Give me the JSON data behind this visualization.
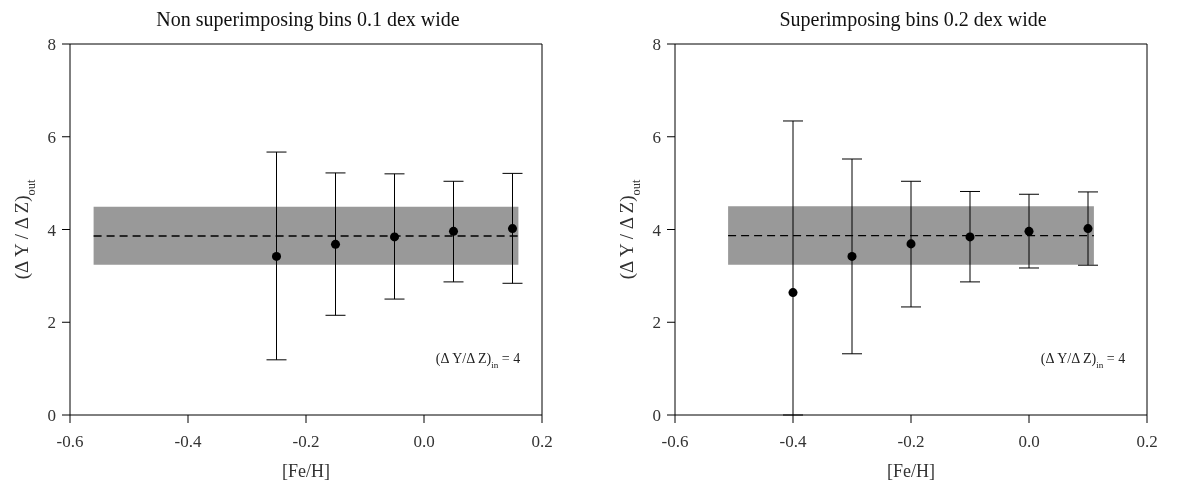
{
  "chart_data": [
    {
      "type": "scatter",
      "title": "Non superimposing bins 0.1 dex wide",
      "xlabel": "[Fe/H]",
      "ylabel": "(Δ Y / Δ Z)$_{out}$",
      "annotations": [
        "(Δ Y/Δ Z)$_{in}$ = 4"
      ],
      "xlim": [
        -0.6,
        0.2
      ],
      "xticks": [
        {
          "value": -0.6,
          "label": "-0.6"
        },
        {
          "value": -0.4,
          "label": "-0.4"
        },
        {
          "value": -0.2,
          "label": "-0.2"
        },
        {
          "value": 0,
          "label": "0.0"
        },
        {
          "value": 0.2,
          "label": "0.2"
        }
      ],
      "ylim": [
        0,
        8
      ],
      "yticks": [
        0,
        2,
        4,
        6,
        8
      ],
      "series": [
        {
          "type": "line",
          "color": "#000000",
          "line_style": "dashed",
          "marker": "none",
          "x": [
            -0.56,
            0.16
          ],
          "values": [
            3.86,
            3.86
          ],
          "lower": [
            3.24,
            3.24
          ],
          "upper": [
            4.49,
            4.49
          ]
        },
        {
          "color": "#000000",
          "marker": "circle",
          "x": [
            -0.25,
            -0.15,
            -0.05,
            0.05,
            0.15
          ],
          "values": [
            3.42,
            3.68,
            3.84,
            3.96,
            4.02
          ],
          "errors": [
            [
              1.19,
              5.67
            ],
            [
              2.15,
              5.22
            ],
            [
              2.5,
              5.2
            ],
            [
              2.87,
              5.04
            ],
            [
              2.84,
              5.21
            ]
          ]
        }
      ]
    },
    {
      "type": "scatter",
      "title": "Superimposing bins 0.2 dex wide",
      "xlabel": "[Fe/H]",
      "ylabel": "(Δ Y / Δ Z)$_{out}$",
      "annotations": [
        "(Δ Y/Δ Z)$_{in}$ = 4"
      ],
      "xlim": [
        -0.6,
        0.2
      ],
      "xticks": [
        {
          "value": -0.6,
          "label": "-0.6"
        },
        {
          "value": -0.4,
          "label": "-0.4"
        },
        {
          "value": -0.2,
          "label": "-0.2"
        },
        {
          "value": 0,
          "label": "0.0"
        },
        {
          "value": 0.2,
          "label": "0.2"
        }
      ],
      "ylim": [
        0,
        8
      ],
      "yticks": [
        0,
        2,
        4,
        6,
        8
      ],
      "series": [
        {
          "type": "line",
          "color": "#000000",
          "line_style": "dashed",
          "marker": "none",
          "x": [
            -0.51,
            0.11
          ],
          "values": [
            3.87,
            3.87
          ],
          "lower": [
            3.24,
            3.24
          ],
          "upper": [
            4.5,
            4.5
          ]
        },
        {
          "color": "#000000",
          "marker": "circle",
          "x": [
            -0.4,
            -0.3,
            -0.2,
            -0.1,
            0,
            0.1
          ],
          "values": [
            2.64,
            3.42,
            3.69,
            3.84,
            3.96,
            4.02
          ],
          "errors": [
            [
              0,
              6.34
            ],
            [
              1.32,
              5.52
            ],
            [
              2.33,
              5.04
            ],
            [
              2.87,
              4.82
            ],
            [
              3.17,
              4.76
            ],
            [
              3.23,
              4.81
            ]
          ]
        }
      ]
    }
  ]
}
